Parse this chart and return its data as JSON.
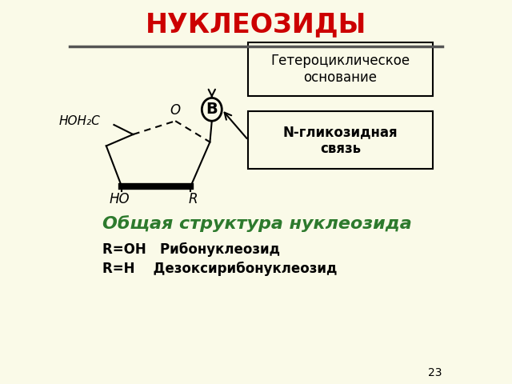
{
  "title": "НУКЛЕОЗИДЫ",
  "title_color": "#cc0000",
  "bg_color": "#fafae8",
  "line_color": "#444444",
  "text_color": "#000000",
  "green_color": "#2d7a2d",
  "subtitle": "Общая структура нуклеозида",
  "line1": "R=OH   Рибонуклеозид",
  "line2": "R=H    Дезоксирибонуклеозид",
  "box1_text": "Гетероциклическое\nоснование",
  "box2_text": "N-гликозидная\nсвязь",
  "label_B": "В",
  "label_O": "O",
  "label_HO": "HO",
  "label_R": "R",
  "label_HOH2C": "HOH₂C",
  "page_num": "23"
}
